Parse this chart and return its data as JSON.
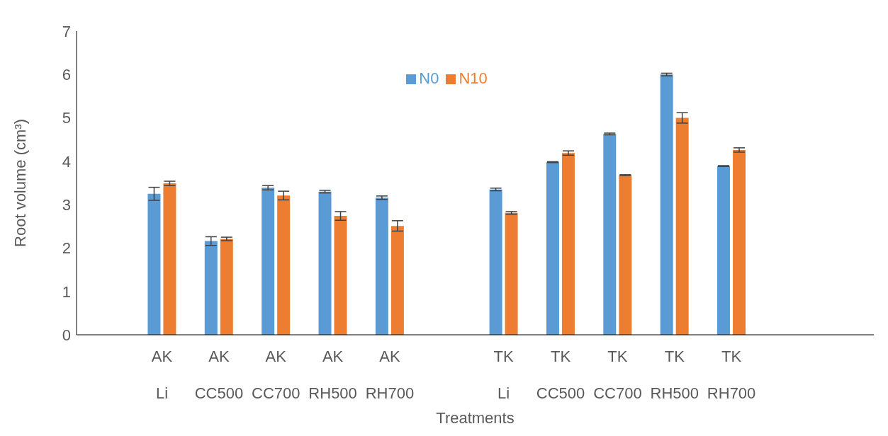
{
  "chart_data": {
    "type": "bar",
    "xlabel": "Treatments",
    "ylabel": "Root volume (cm³)",
    "categories": [
      null,
      "AK Li",
      "AK CC500",
      "AK CC700",
      "AK RH500",
      "AK RH700",
      null,
      "TK Li",
      "TK CC500",
      "TK CC700",
      "TK RH500",
      "TK RH700",
      null,
      null
    ],
    "series": [
      {
        "name": "N0",
        "color": "#5b9bd5",
        "values": [
          null,
          3.25,
          2.16,
          3.39,
          3.3,
          3.16,
          null,
          3.35,
          3.98,
          4.63,
          6.0,
          3.89,
          null,
          null
        ],
        "errors": [
          null,
          0.15,
          0.1,
          0.05,
          0.03,
          0.04,
          null,
          0.03,
          0.01,
          0.02,
          0.03,
          0.01,
          null,
          null
        ]
      },
      {
        "name": "N10",
        "color": "#ed7d31",
        "values": [
          null,
          3.49,
          2.21,
          3.21,
          2.74,
          2.51,
          null,
          2.81,
          4.19,
          3.68,
          5.0,
          4.26,
          null,
          null
        ],
        "errors": [
          null,
          0.05,
          0.04,
          0.1,
          0.1,
          0.12,
          null,
          0.03,
          0.05,
          0.01,
          0.12,
          0.05,
          null,
          null
        ]
      }
    ],
    "ylim": [
      0,
      7
    ],
    "yticks": [
      0,
      1,
      2,
      3,
      4,
      5,
      6,
      7
    ],
    "legend": "top"
  }
}
